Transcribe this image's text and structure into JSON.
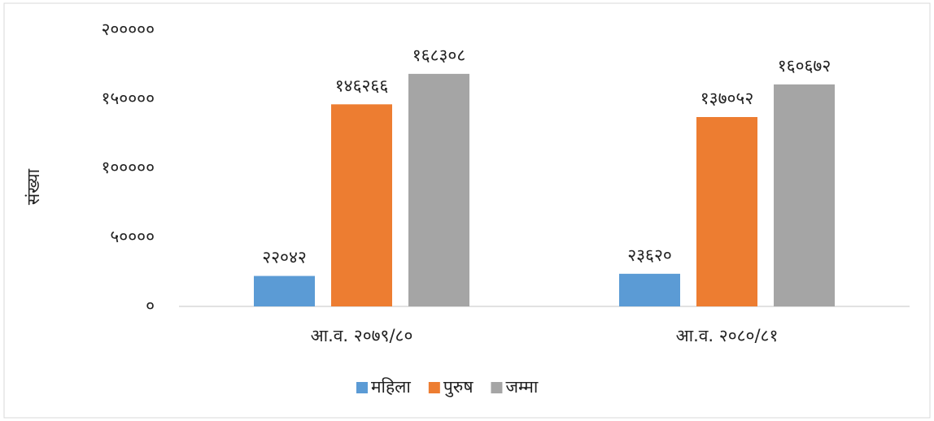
{
  "chart_data": {
    "type": "bar",
    "y_label": "संख्या",
    "categories": [
      "आ.व. २०७९/८०",
      "आ.व. २०८०/८१"
    ],
    "series": [
      {
        "name": "महिला",
        "color": "#5b9bd5",
        "values": [
          22042,
          23620
        ],
        "value_labels": [
          "२२०४२",
          "२३६२०"
        ]
      },
      {
        "name": "पुरुष",
        "color": "#ed7d31",
        "values": [
          146266,
          137052
        ],
        "value_labels": [
          "१४६२६६",
          "१३७०५२"
        ]
      },
      {
        "name": "जम्मा",
        "color": "#a5a5a5",
        "values": [
          168308,
          160672
        ],
        "value_labels": [
          "१६८३०८",
          "१६०६७२"
        ]
      }
    ],
    "ylim": [
      0,
      200000
    ],
    "yticks": [
      {
        "value": 0,
        "label": "०"
      },
      {
        "value": 50000,
        "label": "५००००"
      },
      {
        "value": 100000,
        "label": "१०००००"
      },
      {
        "value": 150000,
        "label": "१५००००"
      },
      {
        "value": 200000,
        "label": "२०००००"
      }
    ],
    "grid": false,
    "legend": "bottom"
  }
}
